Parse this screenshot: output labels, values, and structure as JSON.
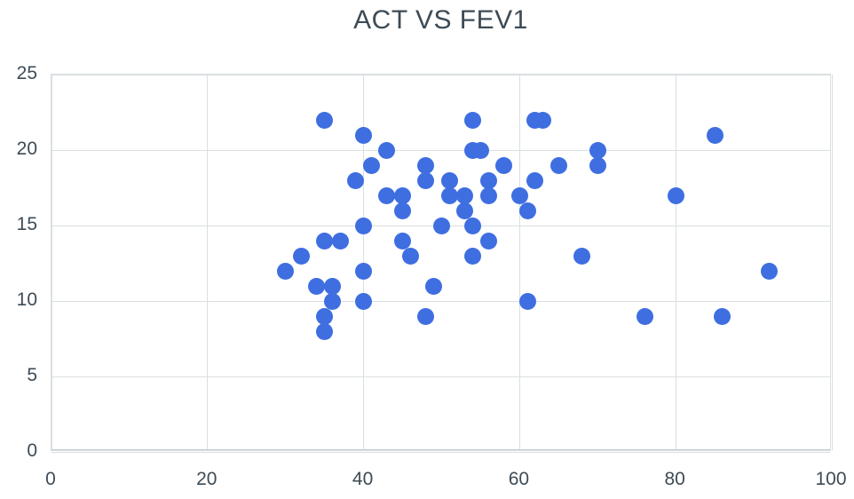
{
  "chart_data": {
    "type": "scatter",
    "title": "ACT VS FEV1",
    "xlabel": "",
    "ylabel": "",
    "xlim": [
      0,
      100
    ],
    "ylim": [
      0,
      25
    ],
    "x_ticks": [
      0,
      20,
      40,
      60,
      80,
      100
    ],
    "y_ticks": [
      0,
      5,
      10,
      15,
      20,
      25
    ],
    "grid": true,
    "legend": false,
    "series": [
      {
        "name": "ACT vs FEV1",
        "points": [
          [
            35,
            22
          ],
          [
            54,
            22
          ],
          [
            62,
            22
          ],
          [
            63,
            22
          ],
          [
            40,
            21
          ],
          [
            85,
            21
          ],
          [
            43,
            20
          ],
          [
            54,
            20
          ],
          [
            55,
            20
          ],
          [
            70,
            20
          ],
          [
            41,
            19
          ],
          [
            48,
            19
          ],
          [
            58,
            19
          ],
          [
            65,
            19
          ],
          [
            70,
            19
          ],
          [
            39,
            18
          ],
          [
            48,
            18
          ],
          [
            51,
            18
          ],
          [
            56,
            18
          ],
          [
            62,
            18
          ],
          [
            43,
            17
          ],
          [
            45,
            17
          ],
          [
            51,
            17
          ],
          [
            53,
            17
          ],
          [
            56,
            17
          ],
          [
            60,
            17
          ],
          [
            80,
            17
          ],
          [
            45,
            16
          ],
          [
            53,
            16
          ],
          [
            61,
            16
          ],
          [
            40,
            15
          ],
          [
            50,
            15
          ],
          [
            54,
            15
          ],
          [
            35,
            14
          ],
          [
            37,
            14
          ],
          [
            45,
            14
          ],
          [
            56,
            14
          ],
          [
            32,
            13
          ],
          [
            46,
            13
          ],
          [
            54,
            13
          ],
          [
            68,
            13
          ],
          [
            30,
            12
          ],
          [
            40,
            12
          ],
          [
            92,
            12
          ],
          [
            34,
            11
          ],
          [
            36,
            11
          ],
          [
            49,
            11
          ],
          [
            36,
            10
          ],
          [
            40,
            10
          ],
          [
            61,
            10
          ],
          [
            35,
            9
          ],
          [
            48,
            9
          ],
          [
            76,
            9
          ],
          [
            86,
            9
          ],
          [
            35,
            8
          ]
        ]
      }
    ],
    "colors": {
      "marker": "#3e6ee0",
      "title_text": "#3e4b55",
      "tick_text": "#3e4b55",
      "gridline": "#d9dfe1",
      "axis_line": "#c3ccd1",
      "background": "#ffffff"
    }
  }
}
